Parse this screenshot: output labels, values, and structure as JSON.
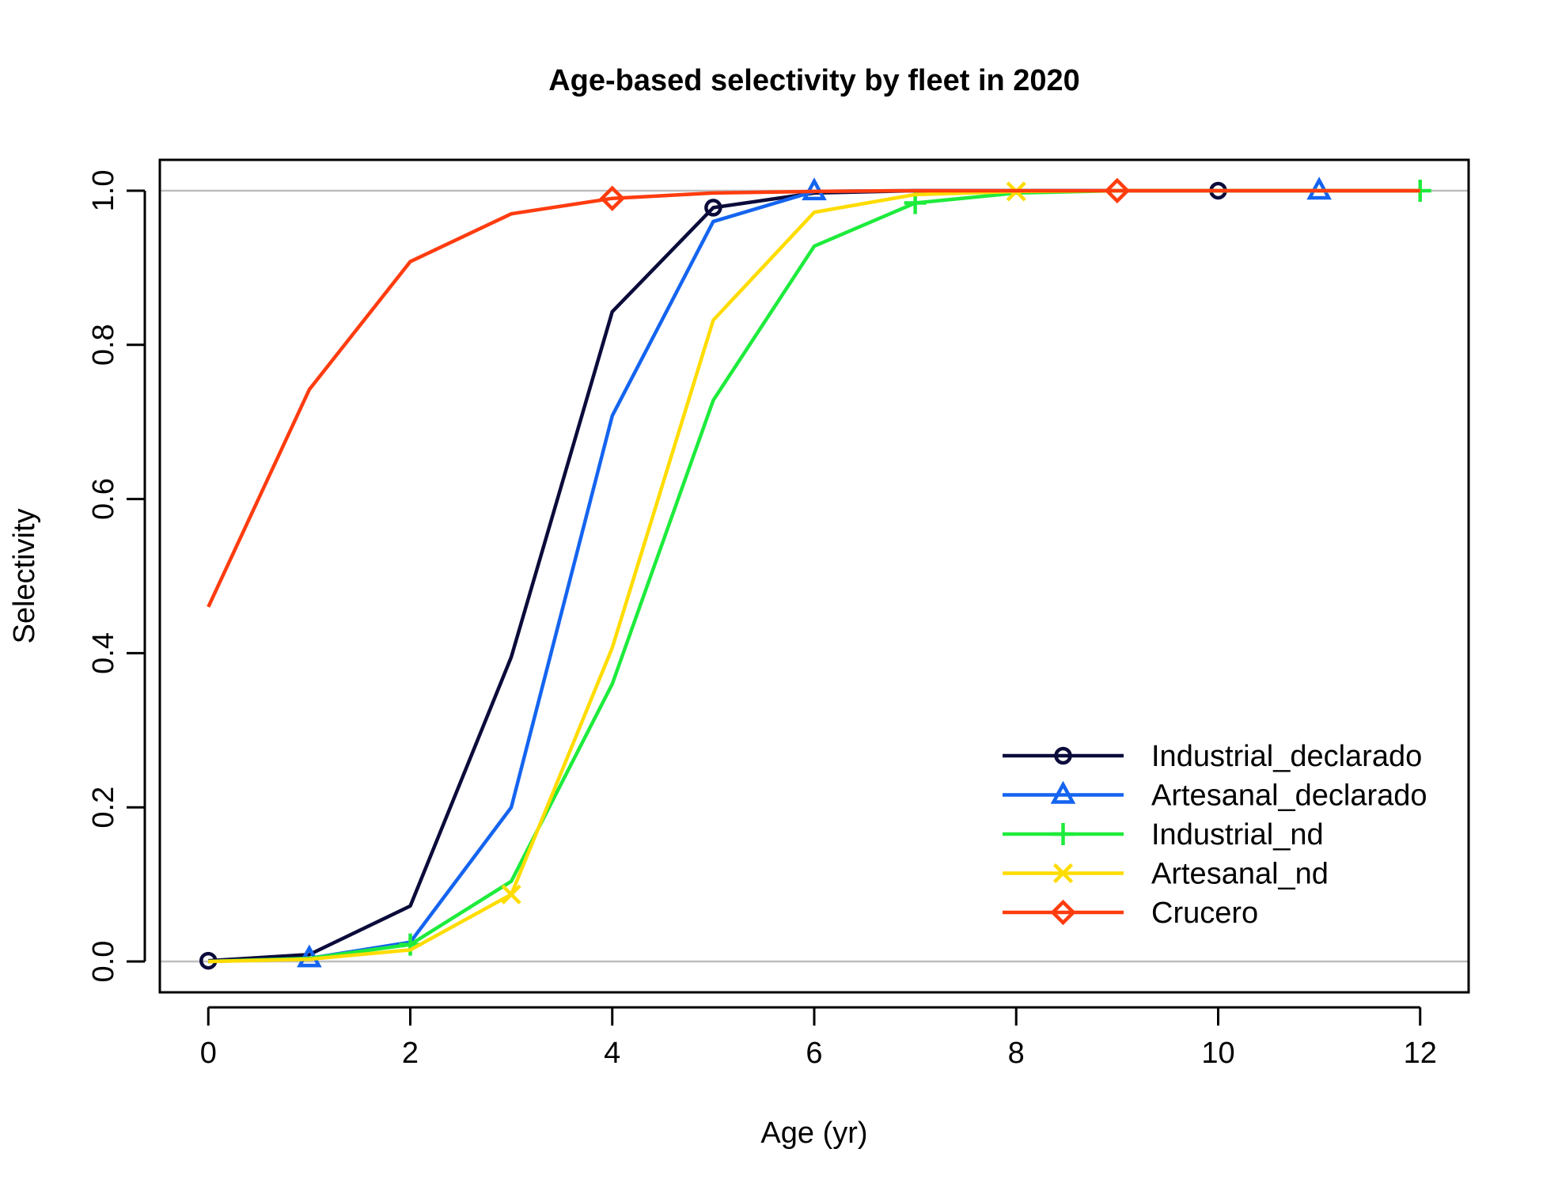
{
  "chart_data": {
    "type": "line",
    "title": "Age-based selectivity by fleet in 2020",
    "xlabel": "Age (yr)",
    "ylabel": "Selectivity",
    "xlim": [
      -0.48,
      12.48
    ],
    "ylim": [
      -0.04,
      1.04
    ],
    "x_ticks": [
      0,
      2,
      4,
      6,
      8,
      10,
      12
    ],
    "y_ticks": [
      0.0,
      0.2,
      0.4,
      0.6,
      0.8,
      1.0
    ],
    "x_tick_labels": [
      "0",
      "2",
      "4",
      "6",
      "8",
      "10",
      "12"
    ],
    "y_tick_labels": [
      "0.0",
      "0.2",
      "0.4",
      "0.6",
      "0.8",
      "1.0"
    ],
    "hlines": [
      0,
      1
    ],
    "hline_color": "#bebebe",
    "legend_position": "bottom-right",
    "x": [
      0,
      1,
      2,
      3,
      4,
      5,
      6,
      7,
      8,
      9,
      10,
      11,
      12
    ],
    "series": [
      {
        "name": "Industrial_declarado",
        "color": "#0b0b3b",
        "marker": "circle",
        "marker_every": 5,
        "marker_offset": 0,
        "values": [
          0.001,
          0.009,
          0.072,
          0.395,
          0.843,
          0.978,
          0.997,
          1.0,
          1.0,
          1.0,
          1.0,
          1.0,
          1.0
        ]
      },
      {
        "name": "Artesanal_declarado",
        "color": "#1464f0",
        "marker": "triangle",
        "marker_every": 5,
        "marker_offset": 1,
        "values": [
          0.0,
          0.004,
          0.025,
          0.2,
          0.708,
          0.96,
          0.999,
          1.0,
          1.0,
          1.0,
          1.0,
          1.0,
          1.0
        ]
      },
      {
        "name": "Industrial_nd",
        "color": "#1eeb3c",
        "marker": "plus",
        "marker_every": 5,
        "marker_offset": 2,
        "values": [
          0.0,
          0.004,
          0.022,
          0.104,
          0.36,
          0.728,
          0.928,
          0.984,
          0.997,
          1.0,
          1.0,
          1.0,
          1.0
        ]
      },
      {
        "name": "Artesanal_nd",
        "color": "#ffdc00",
        "marker": "x",
        "marker_every": 5,
        "marker_offset": 3,
        "values": [
          0.0,
          0.003,
          0.015,
          0.087,
          0.407,
          0.832,
          0.972,
          0.995,
          0.999,
          1.0,
          1.0,
          1.0,
          1.0
        ]
      },
      {
        "name": "Crucero",
        "color": "#ff3c0f",
        "marker": "diamond",
        "marker_every": 5,
        "marker_offset": 4,
        "values": [
          0.46,
          0.742,
          0.908,
          0.97,
          0.99,
          0.997,
          0.999,
          1.0,
          1.0,
          1.0,
          1.0,
          1.0,
          1.0
        ]
      }
    ]
  }
}
